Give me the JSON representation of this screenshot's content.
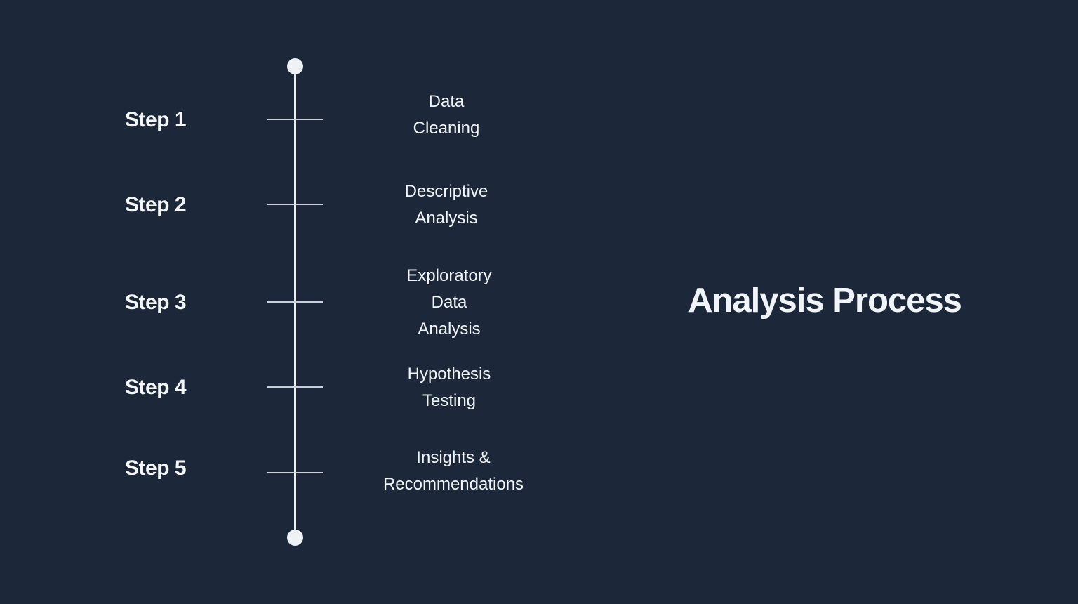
{
  "title": "Analysis Process",
  "steps": [
    {
      "label": "Step 1",
      "description": "Data\nCleaning"
    },
    {
      "label": "Step 2",
      "description": "Descriptive\nAnalysis"
    },
    {
      "label": "Step 3",
      "description": "Exploratory\nData\nAnalysis"
    },
    {
      "label": "Step 4",
      "description": "Hypothesis\nTesting"
    },
    {
      "label": "Step 5",
      "description": "Insights &\nRecommendations"
    }
  ],
  "colors": {
    "background": "#1c2839",
    "line": "#e9edf3",
    "text": "#f1f4f8"
  }
}
